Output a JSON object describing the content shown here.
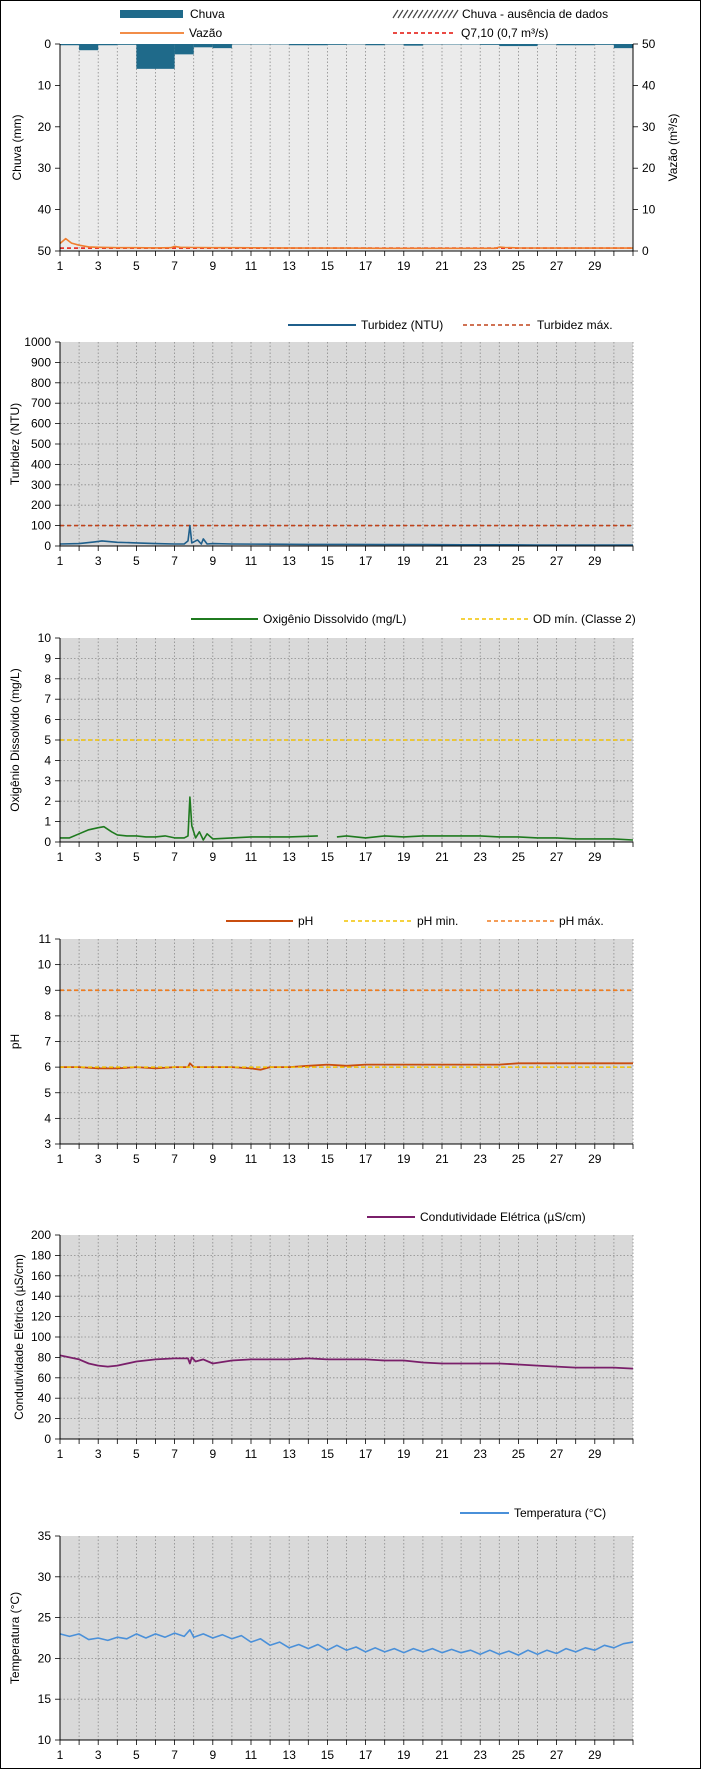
{
  "colors": {
    "rain": "#1f6a8a",
    "flow": "#f07d2e",
    "q710": "#e8312a",
    "turbidity": "#1f5f8b",
    "turbidity_max": "#c0431b",
    "do": "#1f7a1f",
    "do_min": "#f2c300",
    "ph": "#c94d0f",
    "ph_min": "#f2c300",
    "ph_max": "#f07d20",
    "ce": "#7a1f6a",
    "temp": "#4a90d9",
    "plot_bg": "#d9d9d9",
    "plot_bg_light": "#ebebeb"
  },
  "x_axis": {
    "range": [
      1,
      31
    ],
    "tick_labels": [
      "1",
      "3",
      "5",
      "7",
      "9",
      "11",
      "13",
      "15",
      "17",
      "19",
      "21",
      "23",
      "25",
      "27",
      "29"
    ]
  },
  "chart_data": [
    {
      "id": "rain_flow",
      "type": "bar",
      "legend": {
        "rain": "Chuva",
        "flow": "Vazão",
        "missing": "Chuva - ausência de dados",
        "q710": "Q7,10 (0,7 m³/s)"
      },
      "ylabel_left": "Chuva (mm)",
      "ylabel_right": "Vazão (m³/s)",
      "ylim_left": [
        0,
        50
      ],
      "ylim_right": [
        0,
        50
      ],
      "yticks_left": [
        "0",
        "10",
        "20",
        "30",
        "40",
        "50"
      ],
      "yticks_right": [
        "0",
        "10",
        "20",
        "30",
        "40",
        "50"
      ],
      "rain_days": [
        1,
        2,
        3,
        4,
        5,
        6,
        7,
        8,
        9,
        10,
        11,
        12,
        13,
        14,
        15,
        16,
        17,
        18,
        19,
        20,
        21,
        22,
        23,
        24,
        25,
        26,
        27,
        28,
        29,
        30,
        31
      ],
      "rain_values": [
        0.3,
        1.5,
        0.3,
        0.2,
        6.0,
        6.0,
        2.5,
        0.8,
        1.0,
        0.1,
        0.1,
        0.1,
        0.3,
        0.3,
        0.2,
        0.1,
        0.3,
        0.1,
        0.4,
        0.1,
        0.1,
        0.1,
        0.2,
        0.5,
        0.5,
        0.1,
        0.3,
        0.3,
        0.2,
        1.0,
        5.0
      ],
      "flow_x": [
        1,
        1.3,
        1.6,
        2,
        2.5,
        3,
        4,
        5,
        6,
        6.8,
        7,
        7.3,
        8,
        9,
        10,
        12,
        14,
        16,
        18,
        20,
        22,
        23.8,
        24,
        24.3,
        25,
        27,
        29,
        31
      ],
      "flow_values": [
        1.8,
        3.0,
        1.9,
        1.4,
        1.0,
        0.9,
        0.8,
        0.8,
        0.75,
        0.8,
        1.1,
        0.9,
        0.85,
        0.8,
        0.8,
        0.75,
        0.7,
        0.7,
        0.65,
        0.65,
        0.65,
        0.65,
        0.95,
        0.85,
        0.75,
        0.7,
        0.7,
        0.7
      ],
      "q710": 0.7
    },
    {
      "id": "turbidity",
      "type": "line",
      "legend": {
        "value": "Turbidez (NTU)",
        "max": "Turbidez máx."
      },
      "ylabel": "Turbidez (NTU)",
      "ylim": [
        0,
        1000
      ],
      "yticks": [
        "0",
        "100",
        "200",
        "300",
        "400",
        "500",
        "600",
        "700",
        "800",
        "900",
        "1000"
      ],
      "limit": 100,
      "x": [
        1,
        2,
        2.8,
        3.2,
        4,
        5,
        6,
        7,
        7.5,
        7.7,
        7.8,
        7.9,
        8.2,
        8.4,
        8.5,
        8.7,
        9,
        10,
        12,
        14,
        16,
        18,
        20,
        22,
        24,
        26,
        28,
        31
      ],
      "values": [
        10,
        12,
        20,
        25,
        18,
        15,
        12,
        10,
        10,
        25,
        100,
        15,
        30,
        10,
        35,
        10,
        12,
        10,
        9,
        8,
        8,
        7,
        7,
        6,
        6,
        5,
        5,
        5
      ]
    },
    {
      "id": "dissolved_oxygen",
      "type": "line",
      "legend": {
        "value": "Oxigênio Dissolvido (mg/L)",
        "min": "OD mín. (Classe 2)"
      },
      "ylabel": "Oxigênio Dissolvido (mg/L)",
      "ylim": [
        0,
        10
      ],
      "yticks": [
        "0",
        "1",
        "2",
        "3",
        "4",
        "5",
        "6",
        "7",
        "8",
        "9",
        "10"
      ],
      "limit": 5,
      "segments": [
        {
          "x": [
            1,
            1.5,
            2,
            2.5,
            3,
            3.3,
            3.7,
            4,
            4.5,
            5,
            5.5,
            6,
            6.5,
            7,
            7.5,
            7.7,
            7.8,
            7.9,
            8.1,
            8.3,
            8.5,
            8.7,
            9,
            10,
            11,
            12,
            13,
            14.5
          ],
          "values": [
            0.2,
            0.2,
            0.4,
            0.6,
            0.7,
            0.75,
            0.5,
            0.35,
            0.3,
            0.3,
            0.25,
            0.25,
            0.3,
            0.2,
            0.2,
            0.3,
            2.2,
            0.8,
            0.2,
            0.5,
            0.1,
            0.4,
            0.15,
            0.2,
            0.25,
            0.25,
            0.25,
            0.3
          ]
        },
        {
          "x": [
            15.5,
            16,
            17,
            18,
            19,
            20,
            21,
            22,
            23,
            24,
            25,
            26,
            27,
            28,
            29,
            30,
            31
          ],
          "values": [
            0.25,
            0.3,
            0.2,
            0.3,
            0.25,
            0.3,
            0.3,
            0.3,
            0.3,
            0.25,
            0.25,
            0.2,
            0.2,
            0.15,
            0.15,
            0.15,
            0.1
          ]
        }
      ]
    },
    {
      "id": "ph",
      "type": "line",
      "legend": {
        "value": "pH",
        "min": "pH min.",
        "max": "pH máx."
      },
      "ylabel": "pH",
      "ylim": [
        3,
        11
      ],
      "yticks": [
        "3",
        "4",
        "5",
        "6",
        "7",
        "8",
        "9",
        "10",
        "11"
      ],
      "limit_min": 6,
      "limit_max": 9,
      "x": [
        1,
        2,
        3,
        4,
        5,
        6,
        7,
        7.7,
        7.8,
        8,
        9,
        10,
        11,
        11.5,
        12,
        13,
        14,
        15,
        16,
        17,
        18,
        19,
        20,
        21,
        22,
        23,
        24,
        25,
        26,
        27,
        28,
        29,
        30,
        31
      ],
      "values": [
        6.0,
        6.0,
        5.95,
        5.95,
        6.0,
        5.95,
        6.0,
        6.0,
        6.15,
        6.0,
        6.0,
        6.0,
        5.95,
        5.9,
        6.0,
        6.0,
        6.05,
        6.1,
        6.05,
        6.1,
        6.1,
        6.1,
        6.1,
        6.1,
        6.1,
        6.1,
        6.1,
        6.15,
        6.15,
        6.15,
        6.15,
        6.15,
        6.15,
        6.15
      ]
    },
    {
      "id": "conductivity",
      "type": "line",
      "legend": {
        "value": "Condutividade Elétrica (µS/cm)"
      },
      "ylabel": "Condutividade Elétrica (µS/cm)",
      "ylim": [
        0,
        200
      ],
      "yticks": [
        "0",
        "20",
        "40",
        "60",
        "80",
        "100",
        "120",
        "140",
        "160",
        "180",
        "200"
      ],
      "x": [
        1,
        1.5,
        2,
        2.5,
        3,
        3.5,
        4,
        5,
        6,
        7,
        7.7,
        7.8,
        7.9,
        8.1,
        8.5,
        9,
        10,
        11,
        12,
        13,
        14,
        15,
        16,
        17,
        18,
        19,
        20,
        21,
        22,
        23,
        24,
        25,
        26,
        27,
        28,
        29,
        30,
        31
      ],
      "values": [
        82,
        80,
        78,
        74,
        72,
        71,
        72,
        76,
        78,
        79,
        79,
        74,
        80,
        76,
        78,
        74,
        77,
        78,
        78,
        78,
        79,
        78,
        78,
        78,
        77,
        77,
        75,
        74,
        74,
        74,
        74,
        73,
        72,
        71,
        70,
        70,
        70,
        69
      ]
    },
    {
      "id": "temperature",
      "type": "line",
      "legend": {
        "value": "Temperatura (°C)"
      },
      "ylabel": "Temperatura (°C)",
      "ylim": [
        10,
        35
      ],
      "yticks": [
        "10",
        "15",
        "20",
        "25",
        "30",
        "35"
      ],
      "x": [
        1,
        1.5,
        2,
        2.5,
        3,
        3.5,
        4,
        4.5,
        5,
        5.5,
        6,
        6.5,
        7,
        7.5,
        7.8,
        8,
        8.5,
        9,
        9.5,
        10,
        10.5,
        11,
        11.5,
        12,
        12.5,
        13,
        13.5,
        14,
        14.5,
        15,
        15.5,
        16,
        16.5,
        17,
        17.5,
        18,
        18.5,
        19,
        19.5,
        20,
        20.5,
        21,
        21.5,
        22,
        22.5,
        23,
        23.5,
        24,
        24.5,
        25,
        25.5,
        26,
        26.5,
        27,
        27.5,
        28,
        28.5,
        29,
        29.5,
        30,
        30.5,
        31
      ],
      "values": [
        23.0,
        22.7,
        23.0,
        22.3,
        22.5,
        22.2,
        22.6,
        22.4,
        23.0,
        22.5,
        23.0,
        22.6,
        23.1,
        22.7,
        23.5,
        22.6,
        23.0,
        22.5,
        22.9,
        22.4,
        22.8,
        22.0,
        22.4,
        21.6,
        22.0,
        21.3,
        21.7,
        21.2,
        21.7,
        21.0,
        21.6,
        21.0,
        21.4,
        20.8,
        21.3,
        20.8,
        21.2,
        20.7,
        21.2,
        20.8,
        21.2,
        20.7,
        21.1,
        20.7,
        21.0,
        20.5,
        21.0,
        20.5,
        20.9,
        20.4,
        21.0,
        20.5,
        21.0,
        20.6,
        21.2,
        20.8,
        21.3,
        21.0,
        21.6,
        21.3,
        21.8,
        22.0
      ]
    }
  ]
}
